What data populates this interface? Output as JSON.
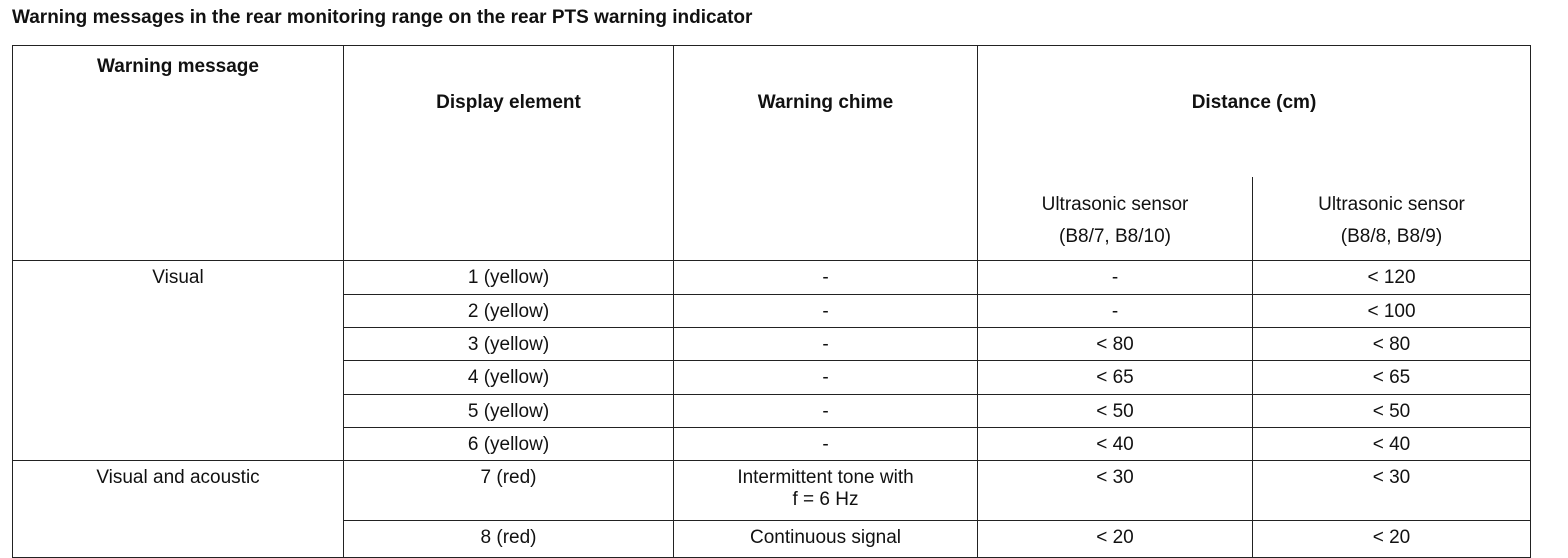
{
  "title": "Warning messages in the rear monitoring range on the rear PTS warning indicator",
  "headers": {
    "warning_message": "Warning message",
    "display_element": "Display element",
    "warning_chime": "Warning chime",
    "distance": "Distance (cm)",
    "sensor_a_line1": "Ultrasonic sensor",
    "sensor_a_line2": "(B8/7, B8/10)",
    "sensor_b_line1": "Ultrasonic sensor",
    "sensor_b_line2": "(B8/8, B8/9)"
  },
  "groups": [
    {
      "label": "Visual"
    },
    {
      "label": "Visual and acoustic"
    }
  ],
  "rows": [
    {
      "display": "1 (yellow)",
      "chime": "-",
      "a": "-",
      "b": "< 120"
    },
    {
      "display": "2 (yellow)",
      "chime": "-",
      "a": "-",
      "b": "< 100"
    },
    {
      "display": "3 (yellow)",
      "chime": "-",
      "a": "< 80",
      "b": "< 80"
    },
    {
      "display": "4 (yellow)",
      "chime": "-",
      "a": "< 65",
      "b": "< 65"
    },
    {
      "display": "5 (yellow)",
      "chime": "-",
      "a": "< 50",
      "b": "< 50"
    },
    {
      "display": "6 (yellow)",
      "chime": "-",
      "a": "< 40",
      "b": "< 40"
    },
    {
      "display": "7 (red)",
      "chime": "Intermittent tone with",
      "chime2": "f = 6 Hz",
      "a": "< 30",
      "b": "< 30"
    },
    {
      "display": "8 (red)",
      "chime": "Continuous signal",
      "a": "< 20",
      "b": "< 20"
    }
  ]
}
